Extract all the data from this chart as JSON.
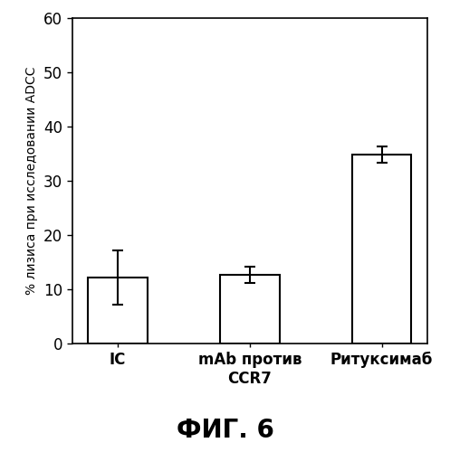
{
  "categories": [
    "IC",
    "mAb против\nCCR7",
    "Ритуксимаб"
  ],
  "values": [
    12.2,
    12.7,
    34.8
  ],
  "errors": [
    5.0,
    1.5,
    1.5
  ],
  "bar_color": "#ffffff",
  "bar_edgecolor": "#000000",
  "bar_width": 0.45,
  "ylim": [
    0,
    60
  ],
  "yticks": [
    0,
    10,
    20,
    30,
    40,
    50,
    60
  ],
  "ylabel": "% лизиса при исследовании ADCC",
  "xlabel": "",
  "title": "",
  "caption": "ФИГ. 6",
  "caption_fontsize": 20,
  "ylabel_fontsize": 10,
  "tick_fontsize": 12,
  "xtick_fontsize": 12,
  "background_color": "#ffffff",
  "error_capsize": 4,
  "error_linewidth": 1.5,
  "spine_linewidth": 1.2
}
